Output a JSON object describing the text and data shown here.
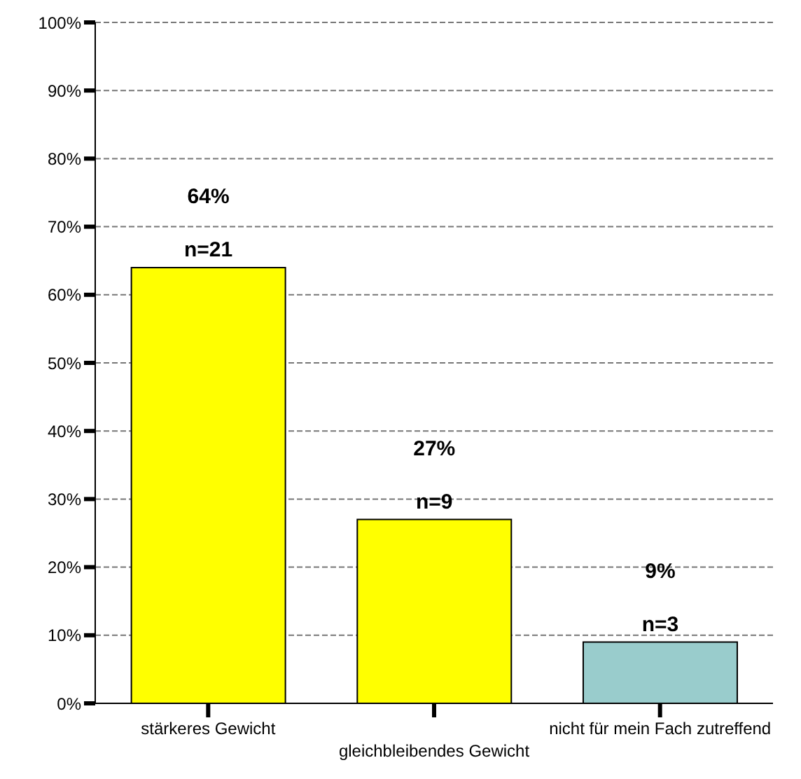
{
  "chart_data": {
    "type": "bar",
    "categories": [
      "stärkeres Gewicht",
      "gleichbleibendes Gewicht",
      "nicht für mein Fach zutreffend"
    ],
    "values": [
      64,
      27,
      9
    ],
    "colors": [
      "#ffff00",
      "#ffff00",
      "#99cccc"
    ],
    "value_labels": [
      "64%",
      "27%",
      "9%"
    ],
    "annotations": [
      {
        "text": "n=21",
        "x": "stärkeres Gewicht",
        "y": 64
      },
      {
        "text": "n=9",
        "x": "gleichbleibendes Gewicht",
        "y": 27
      },
      {
        "text": "n=3",
        "x": "nicht für mein Fach zutreffend",
        "y": 9
      }
    ],
    "ylim": [
      0,
      100
    ],
    "yticks": [
      {
        "value": 0,
        "label": "0%"
      },
      {
        "value": 10,
        "label": "10%"
      },
      {
        "value": 20,
        "label": "20%"
      },
      {
        "value": 30,
        "label": "30%"
      },
      {
        "value": 40,
        "label": "40%"
      },
      {
        "value": 50,
        "label": "50%"
      },
      {
        "value": 60,
        "label": "60%"
      },
      {
        "value": 70,
        "label": "70%"
      },
      {
        "value": 80,
        "label": "80%"
      },
      {
        "value": 90,
        "label": "90%"
      },
      {
        "value": 100,
        "label": "100%"
      }
    ],
    "grid": "y"
  }
}
